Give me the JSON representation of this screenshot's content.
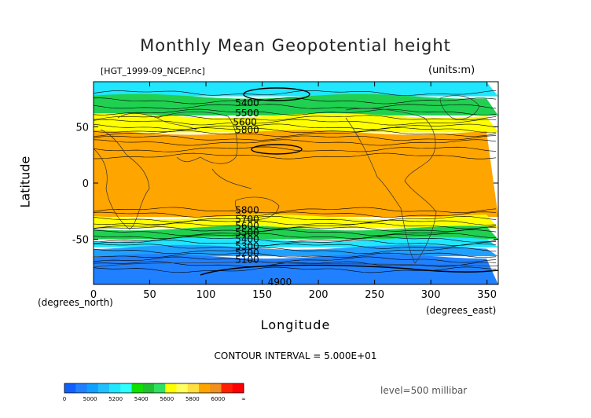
{
  "title": "Monthly Mean Geopotential height",
  "filename": "[HGT_1999-09_NCEP.nc]",
  "units": "(units:m)",
  "ylabel": "Latitude",
  "ylabel_units": "(degrees_north)",
  "xlabel": "Longitude",
  "xlabel_units": "(degrees_east)",
  "contour_interval": "CONTOUR INTERVAL = 5.000E+01",
  "level": "level=500 millibar",
  "chart_data": {
    "type": "heatmap",
    "title": "Monthly Mean Geopotential height",
    "xlabel": "Longitude",
    "ylabel": "Latitude",
    "xlim": [
      0,
      360
    ],
    "ylim": [
      -90,
      90
    ],
    "x_ticks": [
      0,
      50,
      100,
      150,
      200,
      250,
      300,
      350
    ],
    "y_ticks": [
      50,
      0,
      -50
    ],
    "bands": [
      {
        "lat_from": 90,
        "lat_to": 77,
        "value_range": "5200-5400",
        "color": "#20e6ff"
      },
      {
        "lat_from": 77,
        "lat_to": 60,
        "value_range": "5400-5600",
        "color": "#20d050"
      },
      {
        "lat_from": 60,
        "lat_to": 45,
        "value_range": "5600-5800",
        "color": "#ffff00"
      },
      {
        "lat_from": 45,
        "lat_to": -30,
        "value_range": "5800-6000",
        "color": "#ffa500"
      },
      {
        "lat_from": -30,
        "lat_to": -40,
        "value_range": "5600-5800",
        "color": "#ffff00"
      },
      {
        "lat_from": -40,
        "lat_to": -50,
        "value_range": "5400-5600",
        "color": "#20d050"
      },
      {
        "lat_from": -50,
        "lat_to": -57,
        "value_range": "5200-5400",
        "color": "#20e6ff"
      },
      {
        "lat_from": -57,
        "lat_to": -65,
        "value_range": "5000-5200",
        "color": "#20a0ff"
      },
      {
        "lat_from": -65,
        "lat_to": -90,
        "value_range": "0-5000",
        "color": "#2080ff"
      }
    ],
    "contour_labels": [
      {
        "text": "5400",
        "lon": 126,
        "lat": 71
      },
      {
        "text": "5500",
        "lon": 126,
        "lat": 62
      },
      {
        "text": "5600",
        "lon": 124,
        "lat": 54
      },
      {
        "text": "5800",
        "lon": 126,
        "lat": 47
      },
      {
        "text": "5800",
        "lon": 126,
        "lat": -24
      },
      {
        "text": "5700",
        "lon": 126,
        "lat": -32
      },
      {
        "text": "5600",
        "lon": 126,
        "lat": -38
      },
      {
        "text": "5500",
        "lon": 126,
        "lat": -44
      },
      {
        "text": "5400",
        "lon": 126,
        "lat": -50
      },
      {
        "text": "5300",
        "lon": 126,
        "lat": -56
      },
      {
        "text": "5200",
        "lon": 126,
        "lat": -62
      },
      {
        "text": "5100",
        "lon": 126,
        "lat": -68
      },
      {
        "text": "4900",
        "lon": 155,
        "lat": -88
      }
    ],
    "colorbar": {
      "labels": [
        "0",
        "5000",
        "5200",
        "5400",
        "5600",
        "5800",
        "6000",
        "∞"
      ],
      "colors": [
        "#1060ff",
        "#2080ff",
        "#10a0ff",
        "#20c0ff",
        "#20e6ff",
        "#30ffff",
        "#10e000",
        "#20c030",
        "#30e060",
        "#ffff00",
        "#ffff60",
        "#ffe040",
        "#ffa500",
        "#f09020",
        "#ff2000",
        "#ff0000"
      ]
    }
  }
}
